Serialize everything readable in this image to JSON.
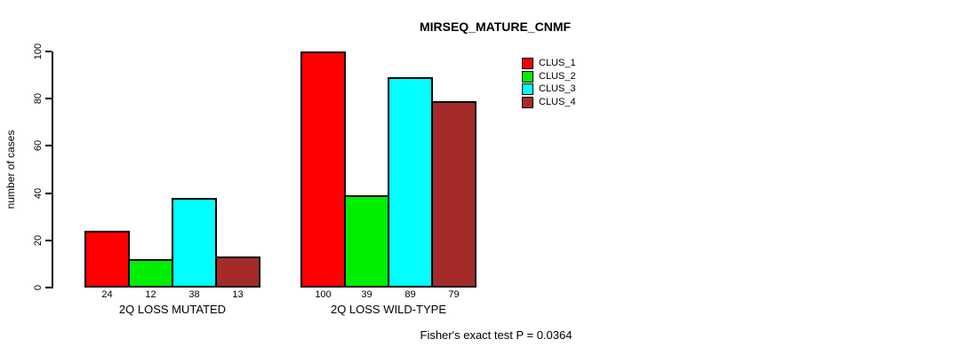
{
  "chart_data": {
    "type": "bar",
    "title": "MIRSEQ_MATURE_CNMF",
    "ylabel": "number of cases",
    "xlabel": "",
    "ylim": [
      0,
      100
    ],
    "yticks": [
      0,
      20,
      40,
      60,
      80,
      100
    ],
    "grid": false,
    "legend_position": "top-right",
    "categories": [
      "2Q LOSS MUTATED",
      "2Q LOSS WILD-TYPE"
    ],
    "series": [
      {
        "name": "CLUS_1",
        "color": "#FF0000",
        "values": [
          24,
          100
        ]
      },
      {
        "name": "CLUS_2",
        "color": "#00EE00",
        "values": [
          12,
          39
        ]
      },
      {
        "name": "CLUS_3",
        "color": "#00FFFF",
        "values": [
          38,
          89
        ]
      },
      {
        "name": "CLUS_4",
        "color": "#A52A2A",
        "values": [
          13,
          79
        ]
      }
    ],
    "bar_value_labels": [
      [
        24,
        12,
        38,
        13
      ],
      [
        100,
        39,
        89,
        79
      ]
    ],
    "annotation": "Fisher's exact test P = 0.0364",
    "axis_color": "#000000",
    "background_color": "#FFFFFF"
  }
}
